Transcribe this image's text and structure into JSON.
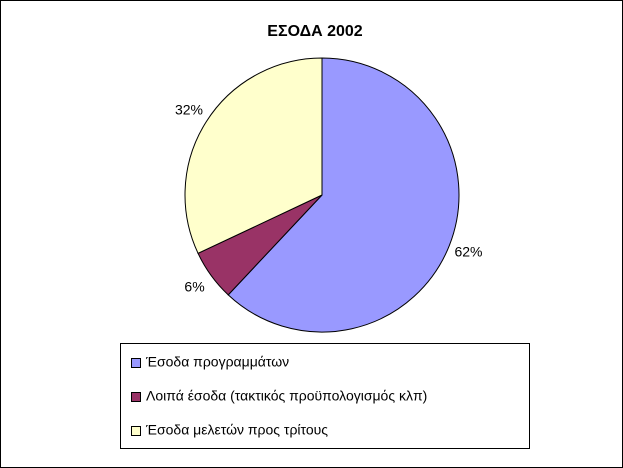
{
  "chart_data": {
    "type": "pie",
    "title": "ΕΣΟΔΑ 2002",
    "categories": [
      "Έσοδα προγραμμάτων",
      "Λοιπά έσοδα (τακτικός προϋπολογισμός κλπ)",
      "Έσοδα μελετών προς τρίτους"
    ],
    "values": [
      62,
      6,
      32
    ],
    "value_labels": [
      "62%",
      "6%",
      "32%"
    ],
    "colors": [
      "#9999ff",
      "#993366",
      "#ffffcc"
    ],
    "legend": "bottom"
  }
}
